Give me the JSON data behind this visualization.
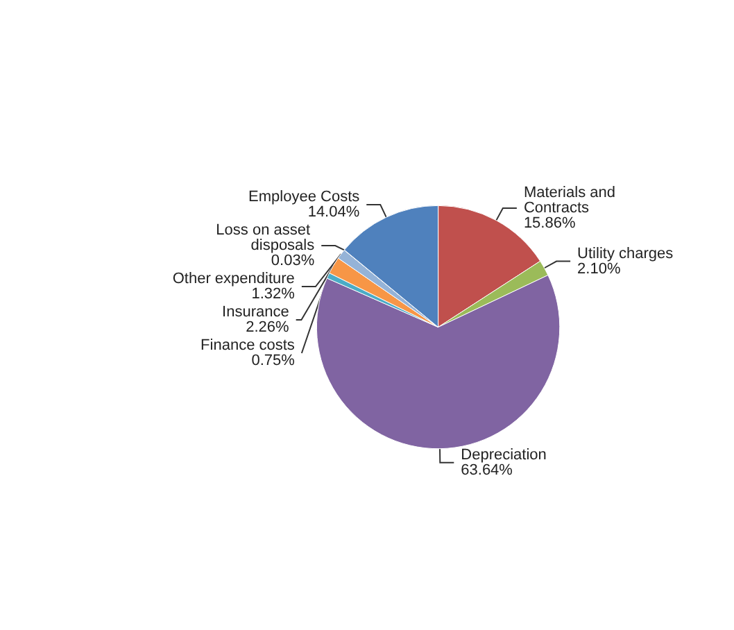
{
  "chart_data": {
    "type": "pie",
    "categories": [
      "Materials and Contracts",
      "Utility charges",
      "Depreciation",
      "Finance costs",
      "Insurance",
      "Other expenditure",
      "Loss on asset disposals",
      "Employee Costs"
    ],
    "values": [
      15.86,
      2.1,
      63.64,
      0.75,
      2.26,
      1.32,
      0.03,
      14.04
    ],
    "value_labels": [
      "15.86%",
      "2.10%",
      "63.64%",
      "0.75%",
      "2.26%",
      "1.32%",
      "0.03%",
      "14.04%"
    ],
    "colors": [
      "#c0504d",
      "#9bbb59",
      "#8064a2",
      "#4bacc6",
      "#f79646",
      "#95b3d7",
      "#2c4d75",
      "#4f81bd"
    ],
    "legend": false
  }
}
